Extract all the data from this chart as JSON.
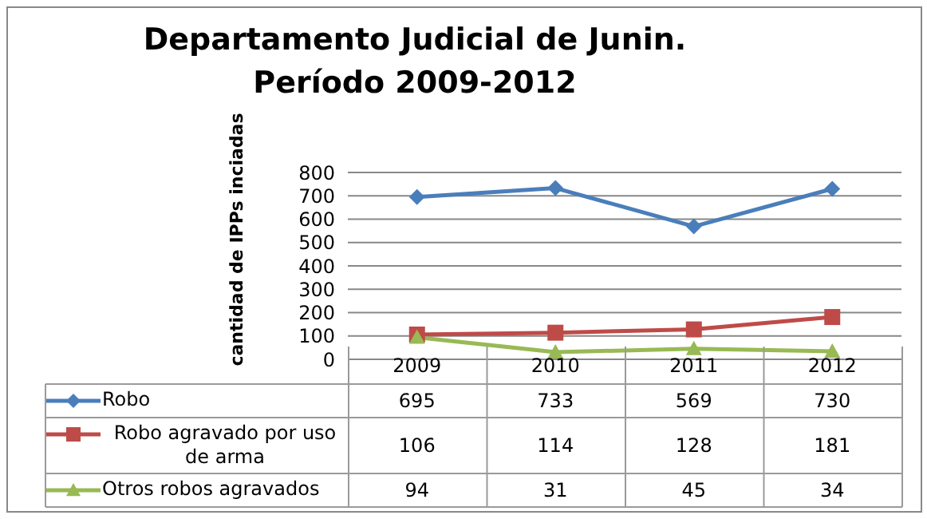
{
  "chart_data": {
    "type": "line",
    "title": "Departamento Judicial de Junin.\nPeríodo  2009-2012",
    "ylabel": "cantidad de IPPs inciadas",
    "categories": [
      "2009",
      "2010",
      "2011",
      "2012"
    ],
    "series": [
      {
        "name": "Robo",
        "color": "#4a7ebb",
        "marker": "diamond",
        "values": [
          695,
          733,
          569,
          730
        ]
      },
      {
        "name": "Robo agravado por uso de arma",
        "color": "#be4b48",
        "marker": "square",
        "values": [
          106,
          114,
          128,
          181
        ]
      },
      {
        "name": "Otros robos agravados",
        "color": "#98b954",
        "marker": "triangle",
        "values": [
          94,
          31,
          45,
          34
        ]
      }
    ],
    "ylim": [
      0,
      800
    ],
    "yticks": [
      0,
      100,
      200,
      300,
      400,
      500,
      600,
      700,
      800
    ],
    "grid": "y",
    "legend": "bottom",
    "data_labels": true
  }
}
